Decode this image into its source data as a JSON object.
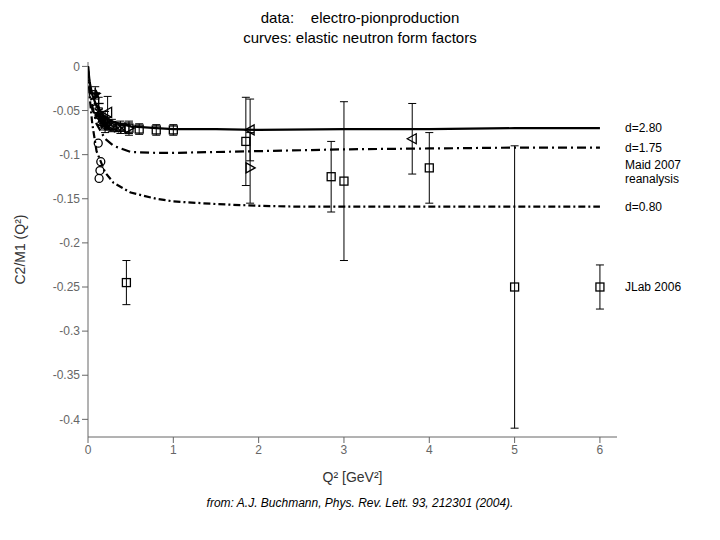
{
  "chart_data": {
    "type": "scatter",
    "title": "data:    electro-pionproduction",
    "subtitle": "curves: elastic neutron form factors",
    "xlabel": "Q² [GeV²]",
    "ylabel": "C2/M1  (Q²)",
    "xlim": [
      0,
      6.2
    ],
    "ylim": [
      -0.42,
      0.005
    ],
    "xticks": [
      0,
      1,
      2,
      3,
      4,
      5,
      6
    ],
    "yticks": [
      0,
      -0.05,
      -0.1,
      -0.15,
      -0.2,
      -0.25,
      -0.3,
      -0.35,
      -0.4
    ],
    "grid": false,
    "color": "#000000",
    "annotations": [
      "from: A.J. Buchmann, Phys. Rev. Lett. 93, 212301 (2004)."
    ],
    "series": [
      {
        "name": "d=2.80",
        "type": "line",
        "line_style": "solid",
        "x": [
          0.0,
          0.02,
          0.05,
          0.1,
          0.2,
          0.3,
          0.5,
          0.8,
          1.0,
          1.5,
          2.0,
          3.0,
          4.0,
          5.0,
          6.0
        ],
        "values": [
          0.0,
          -0.018,
          -0.032,
          -0.045,
          -0.058,
          -0.063,
          -0.068,
          -0.07,
          -0.071,
          -0.071,
          -0.072,
          -0.071,
          -0.071,
          -0.07,
          -0.07
        ]
      },
      {
        "name": "d=1.75",
        "type": "line",
        "line_style": "dashdot",
        "x": [
          0.0,
          0.02,
          0.05,
          0.1,
          0.2,
          0.3,
          0.5,
          0.8,
          1.0,
          1.5,
          2.0,
          3.0,
          4.0,
          5.0,
          6.0
        ],
        "values": [
          0.0,
          -0.025,
          -0.045,
          -0.065,
          -0.082,
          -0.09,
          -0.097,
          -0.098,
          -0.098,
          -0.097,
          -0.096,
          -0.094,
          -0.093,
          -0.092,
          -0.092
        ]
      },
      {
        "name": "d=0.80",
        "type": "line",
        "line_style": "dotdash",
        "x": [
          0.0,
          0.02,
          0.05,
          0.1,
          0.2,
          0.3,
          0.5,
          0.8,
          1.0,
          1.5,
          2.0,
          2.5,
          3.0,
          4.0,
          5.0,
          6.0
        ],
        "values": [
          0.0,
          -0.035,
          -0.065,
          -0.096,
          -0.12,
          -0.132,
          -0.143,
          -0.15,
          -0.153,
          -0.156,
          -0.158,
          -0.159,
          -0.159,
          -0.159,
          -0.159,
          -0.159
        ]
      },
      {
        "type": "scatter",
        "marker": "circle",
        "x": [
          0.065,
          0.09,
          0.12,
          0.14,
          0.13,
          0.15
        ],
        "values": [
          -0.032,
          -0.048,
          -0.087,
          -0.118,
          -0.127,
          -0.108
        ]
      },
      {
        "type": "scatter",
        "marker": "star",
        "x": [
          0.1,
          0.145,
          0.19,
          0.22,
          0.12,
          0.17
        ],
        "values": [
          -0.032,
          -0.06,
          -0.065,
          -0.068,
          -0.055,
          -0.062
        ]
      },
      {
        "type": "scatter",
        "marker": "triangle-right",
        "x": [
          0.2,
          0.48,
          1.9
        ],
        "values": [
          -0.063,
          -0.07,
          -0.115
        ],
        "yerr": [
          0.012,
          0.008,
          0.04
        ]
      },
      {
        "type": "scatter",
        "marker": "triangle-left",
        "x": [
          0.23,
          1.9,
          3.8
        ],
        "values": [
          -0.052,
          -0.072,
          -0.082
        ],
        "yerr": [
          0.018,
          0.035,
          0.04
        ]
      },
      {
        "type": "scatter",
        "marker": "x",
        "x": [
          0.125,
          0.165,
          0.2,
          0.25,
          0.3,
          0.35,
          0.4
        ],
        "values": [
          -0.052,
          -0.062,
          -0.066,
          -0.068,
          -0.069,
          -0.07,
          -0.07
        ],
        "yerr": [
          0.005,
          0.005,
          0.004,
          0.004,
          0.004,
          0.004,
          0.003
        ]
      },
      {
        "type": "scatter",
        "marker": "plus",
        "x": [
          0.085,
          0.125,
          0.175,
          0.225
        ],
        "values": [
          -0.03,
          -0.042,
          -0.057,
          -0.064
        ],
        "yerr": [
          0.007,
          0.007,
          0.006,
          0.006
        ]
      },
      {
        "type": "scatter",
        "marker": "square",
        "x": [
          0.2,
          0.28,
          0.38,
          0.48,
          0.6,
          0.8,
          1.0
        ],
        "values": [
          -0.064,
          -0.067,
          -0.069,
          -0.07,
          -0.071,
          -0.072,
          -0.072
        ],
        "yerr": [
          0.008,
          0.007,
          0.007,
          0.006,
          0.006,
          0.006,
          0.006
        ]
      },
      {
        "name": "Maid 2007\nreanalysis",
        "type": "scatter",
        "marker": "square",
        "x": [
          1.85,
          2.85,
          4.0
        ],
        "values": [
          -0.085,
          -0.125,
          -0.115
        ],
        "yerr": [
          0.05,
          0.04,
          0.04
        ]
      },
      {
        "name": "JLab 2006",
        "type": "scatter",
        "marker": "square",
        "x": [
          0.45,
          3.0,
          5.0,
          6.0
        ],
        "values": [
          -0.245,
          -0.13,
          -0.25,
          -0.25
        ],
        "yerr": [
          0.025,
          0.09,
          0.16,
          0.025
        ]
      }
    ]
  }
}
